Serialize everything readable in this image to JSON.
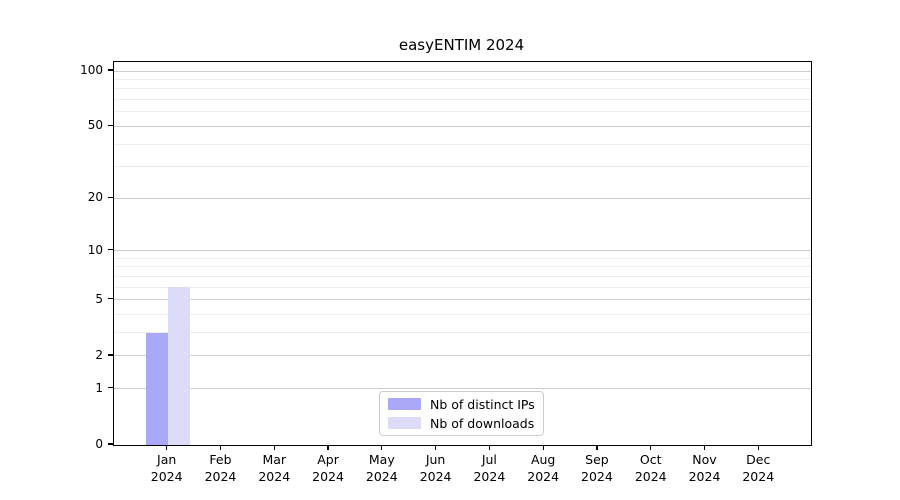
{
  "title": "easyENTIM 2024",
  "chart_data": {
    "type": "bar",
    "title": "easyENTIM 2024",
    "categories": [
      "Jan",
      "Feb",
      "Mar",
      "Apr",
      "May",
      "Jun",
      "Jul",
      "Aug",
      "Sep",
      "Oct",
      "Nov",
      "Dec"
    ],
    "year_label": "2024",
    "series": [
      {
        "name": "Nb of distinct IPs",
        "color": "#a9a9f7",
        "values": [
          3,
          0,
          0,
          0,
          0,
          0,
          0,
          0,
          0,
          0,
          0,
          0
        ]
      },
      {
        "name": "Nb of downloads",
        "color": "#dcdcf8",
        "values": [
          6,
          0,
          0,
          0,
          0,
          0,
          0,
          0,
          0,
          0,
          0,
          0
        ]
      }
    ],
    "xlabel": "",
    "ylabel": "",
    "yticks": [
      0,
      1,
      2,
      5,
      10,
      20,
      50,
      100
    ],
    "minor_yticks": [
      3,
      4,
      6,
      7,
      8,
      9,
      30,
      40,
      60,
      70,
      80,
      90
    ],
    "scale": "log10(1+x)",
    "ylim": [
      0,
      112
    ],
    "grid": "on",
    "legend_position": "lower center"
  },
  "colors": {
    "background": "#ffffff",
    "axis": "#000000",
    "major_grid": "#cccccc",
    "minor_grid": "#ececec",
    "legend_border": "#cccccc",
    "text": "#000000"
  }
}
